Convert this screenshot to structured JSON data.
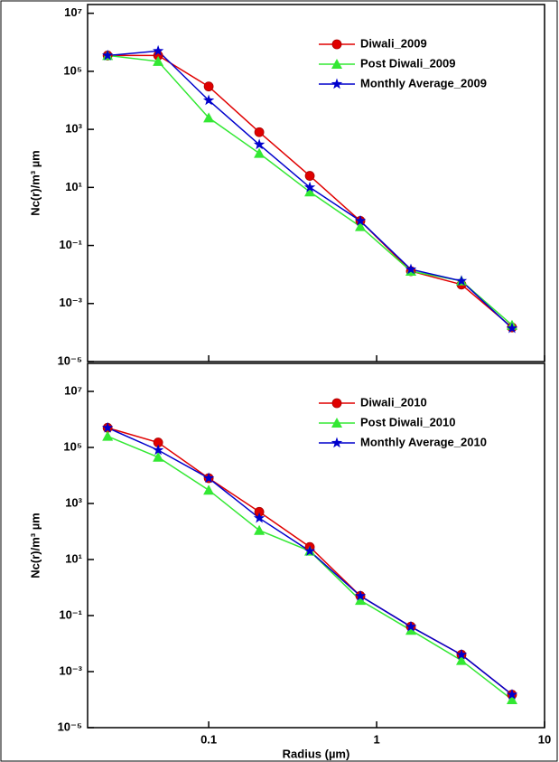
{
  "chart_data": [
    {
      "type": "line",
      "ylabel": "Nc(r)/m³ µm",
      "xscale": "log",
      "yscale": "log",
      "legend": "upper right",
      "x": [
        0.025,
        0.05,
        0.1,
        0.2,
        0.4,
        0.8,
        1.6,
        3.2,
        6.4
      ],
      "xlim": [
        0.019,
        10
      ],
      "ylim": [
        1e-05,
        20000000
      ],
      "yticks": [
        {
          "value": 10000000,
          "label": "10⁷"
        },
        {
          "value": 100000,
          "label": "10⁵"
        },
        {
          "value": 1000,
          "label": "10³"
        },
        {
          "value": 10,
          "label": "10¹"
        },
        {
          "value": 0.1,
          "label": "10⁻¹"
        },
        {
          "value": 0.001,
          "label": "10⁻³"
        },
        {
          "value": 1e-05,
          "label": "10⁻⁵"
        }
      ],
      "series": [
        {
          "name": "Diwali_2009",
          "color": "#e00000",
          "marker": "circle",
          "values": [
            350000,
            350000,
            30000,
            800,
            25,
            0.7,
            0.013,
            0.0045,
            0.00015
          ]
        },
        {
          "name": "Post Diwali_2009",
          "color": "#33e833",
          "marker": "triangle",
          "values": [
            350000,
            220000,
            2500,
            150,
            7,
            0.45,
            0.013,
            0.006,
            0.00018
          ]
        },
        {
          "name": "Monthly Average_2009",
          "color": "#0000cc",
          "marker": "star",
          "values": [
            350000,
            500000,
            10000,
            300,
            10,
            0.7,
            0.015,
            0.006,
            0.00014
          ]
        }
      ]
    },
    {
      "type": "line",
      "ylabel": "Nc(r)/m³ µm",
      "xlabel": "Radius (µm)",
      "xscale": "log",
      "yscale": "log",
      "legend": "upper right",
      "x": [
        0.025,
        0.05,
        0.1,
        0.2,
        0.4,
        0.8,
        1.6,
        3.2,
        6.4
      ],
      "xlim": [
        0.019,
        10
      ],
      "ylim": [
        1e-05,
        100000000
      ],
      "xticks": [
        0.1,
        1,
        10
      ],
      "yticks": [
        {
          "value": 10000000,
          "label": "10⁷"
        },
        {
          "value": 100000,
          "label": "10⁵"
        },
        {
          "value": 1000,
          "label": "10³"
        },
        {
          "value": 10,
          "label": "10¹"
        },
        {
          "value": 0.1,
          "label": "10⁻¹"
        },
        {
          "value": 0.001,
          "label": "10⁻³"
        },
        {
          "value": 1e-05,
          "label": "10⁻⁵"
        }
      ],
      "series": [
        {
          "name": "Diwali_2010",
          "color": "#e00000",
          "marker": "circle",
          "values": [
            500000,
            150000,
            8000,
            500,
            28,
            0.5,
            0.04,
            0.004,
            0.00015
          ]
        },
        {
          "name": "Post Diwali_2010",
          "color": "#33e833",
          "marker": "triangle",
          "values": [
            250000,
            45000,
            3000,
            110,
            20,
            0.35,
            0.03,
            0.0025,
            0.0001
          ]
        },
        {
          "name": "Monthly Average_2010",
          "color": "#0000cc",
          "marker": "star",
          "values": [
            500000,
            80000,
            8000,
            300,
            20,
            0.5,
            0.04,
            0.004,
            0.00015
          ]
        }
      ]
    }
  ]
}
